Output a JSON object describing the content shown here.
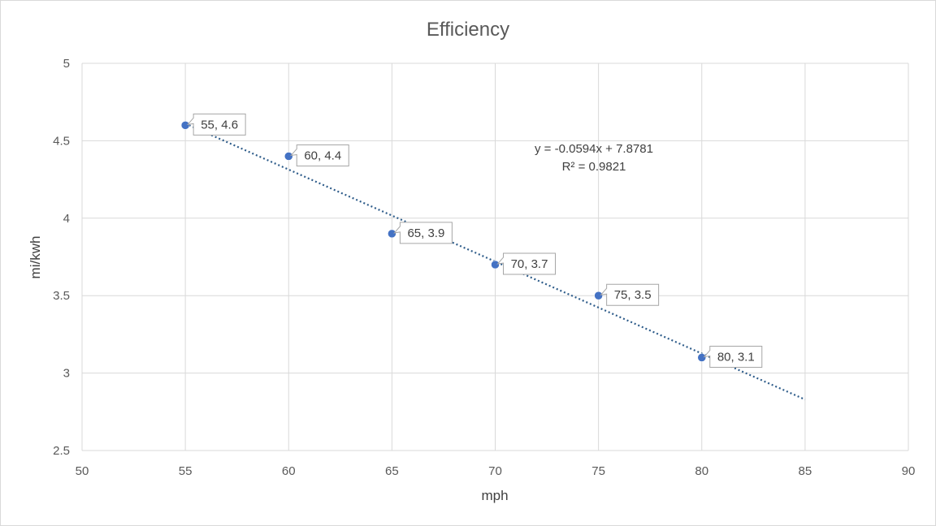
{
  "chart_data": {
    "type": "scatter",
    "title": "Efficiency",
    "xlabel": "mph",
    "ylabel": "mi/kwh",
    "xlim": [
      50,
      90
    ],
    "ylim": [
      2.5,
      5
    ],
    "x_ticks": [
      50,
      55,
      60,
      65,
      70,
      75,
      80,
      85,
      90
    ],
    "y_ticks": [
      2.5,
      3,
      3.5,
      4,
      4.5,
      5
    ],
    "grid": true,
    "series": [
      {
        "x": [
          55,
          60,
          65,
          70,
          75,
          80
        ],
        "y": [
          4.6,
          4.4,
          3.9,
          3.7,
          3.5,
          3.1
        ],
        "labels": [
          "55, 4.6",
          "60, 4.4",
          "65, 3.9",
          "70, 3.7",
          "75, 3.5",
          "80, 3.1"
        ],
        "color": "#4472c4"
      }
    ],
    "trendline": {
      "type": "linear",
      "slope": -0.0594,
      "intercept": 7.8781,
      "x_range": [
        55,
        85
      ],
      "equation": "y = -0.0594x + 7.8781",
      "r_squared": "R² = 0.9821",
      "style": "dotted",
      "color": "#2e5c8a"
    }
  }
}
